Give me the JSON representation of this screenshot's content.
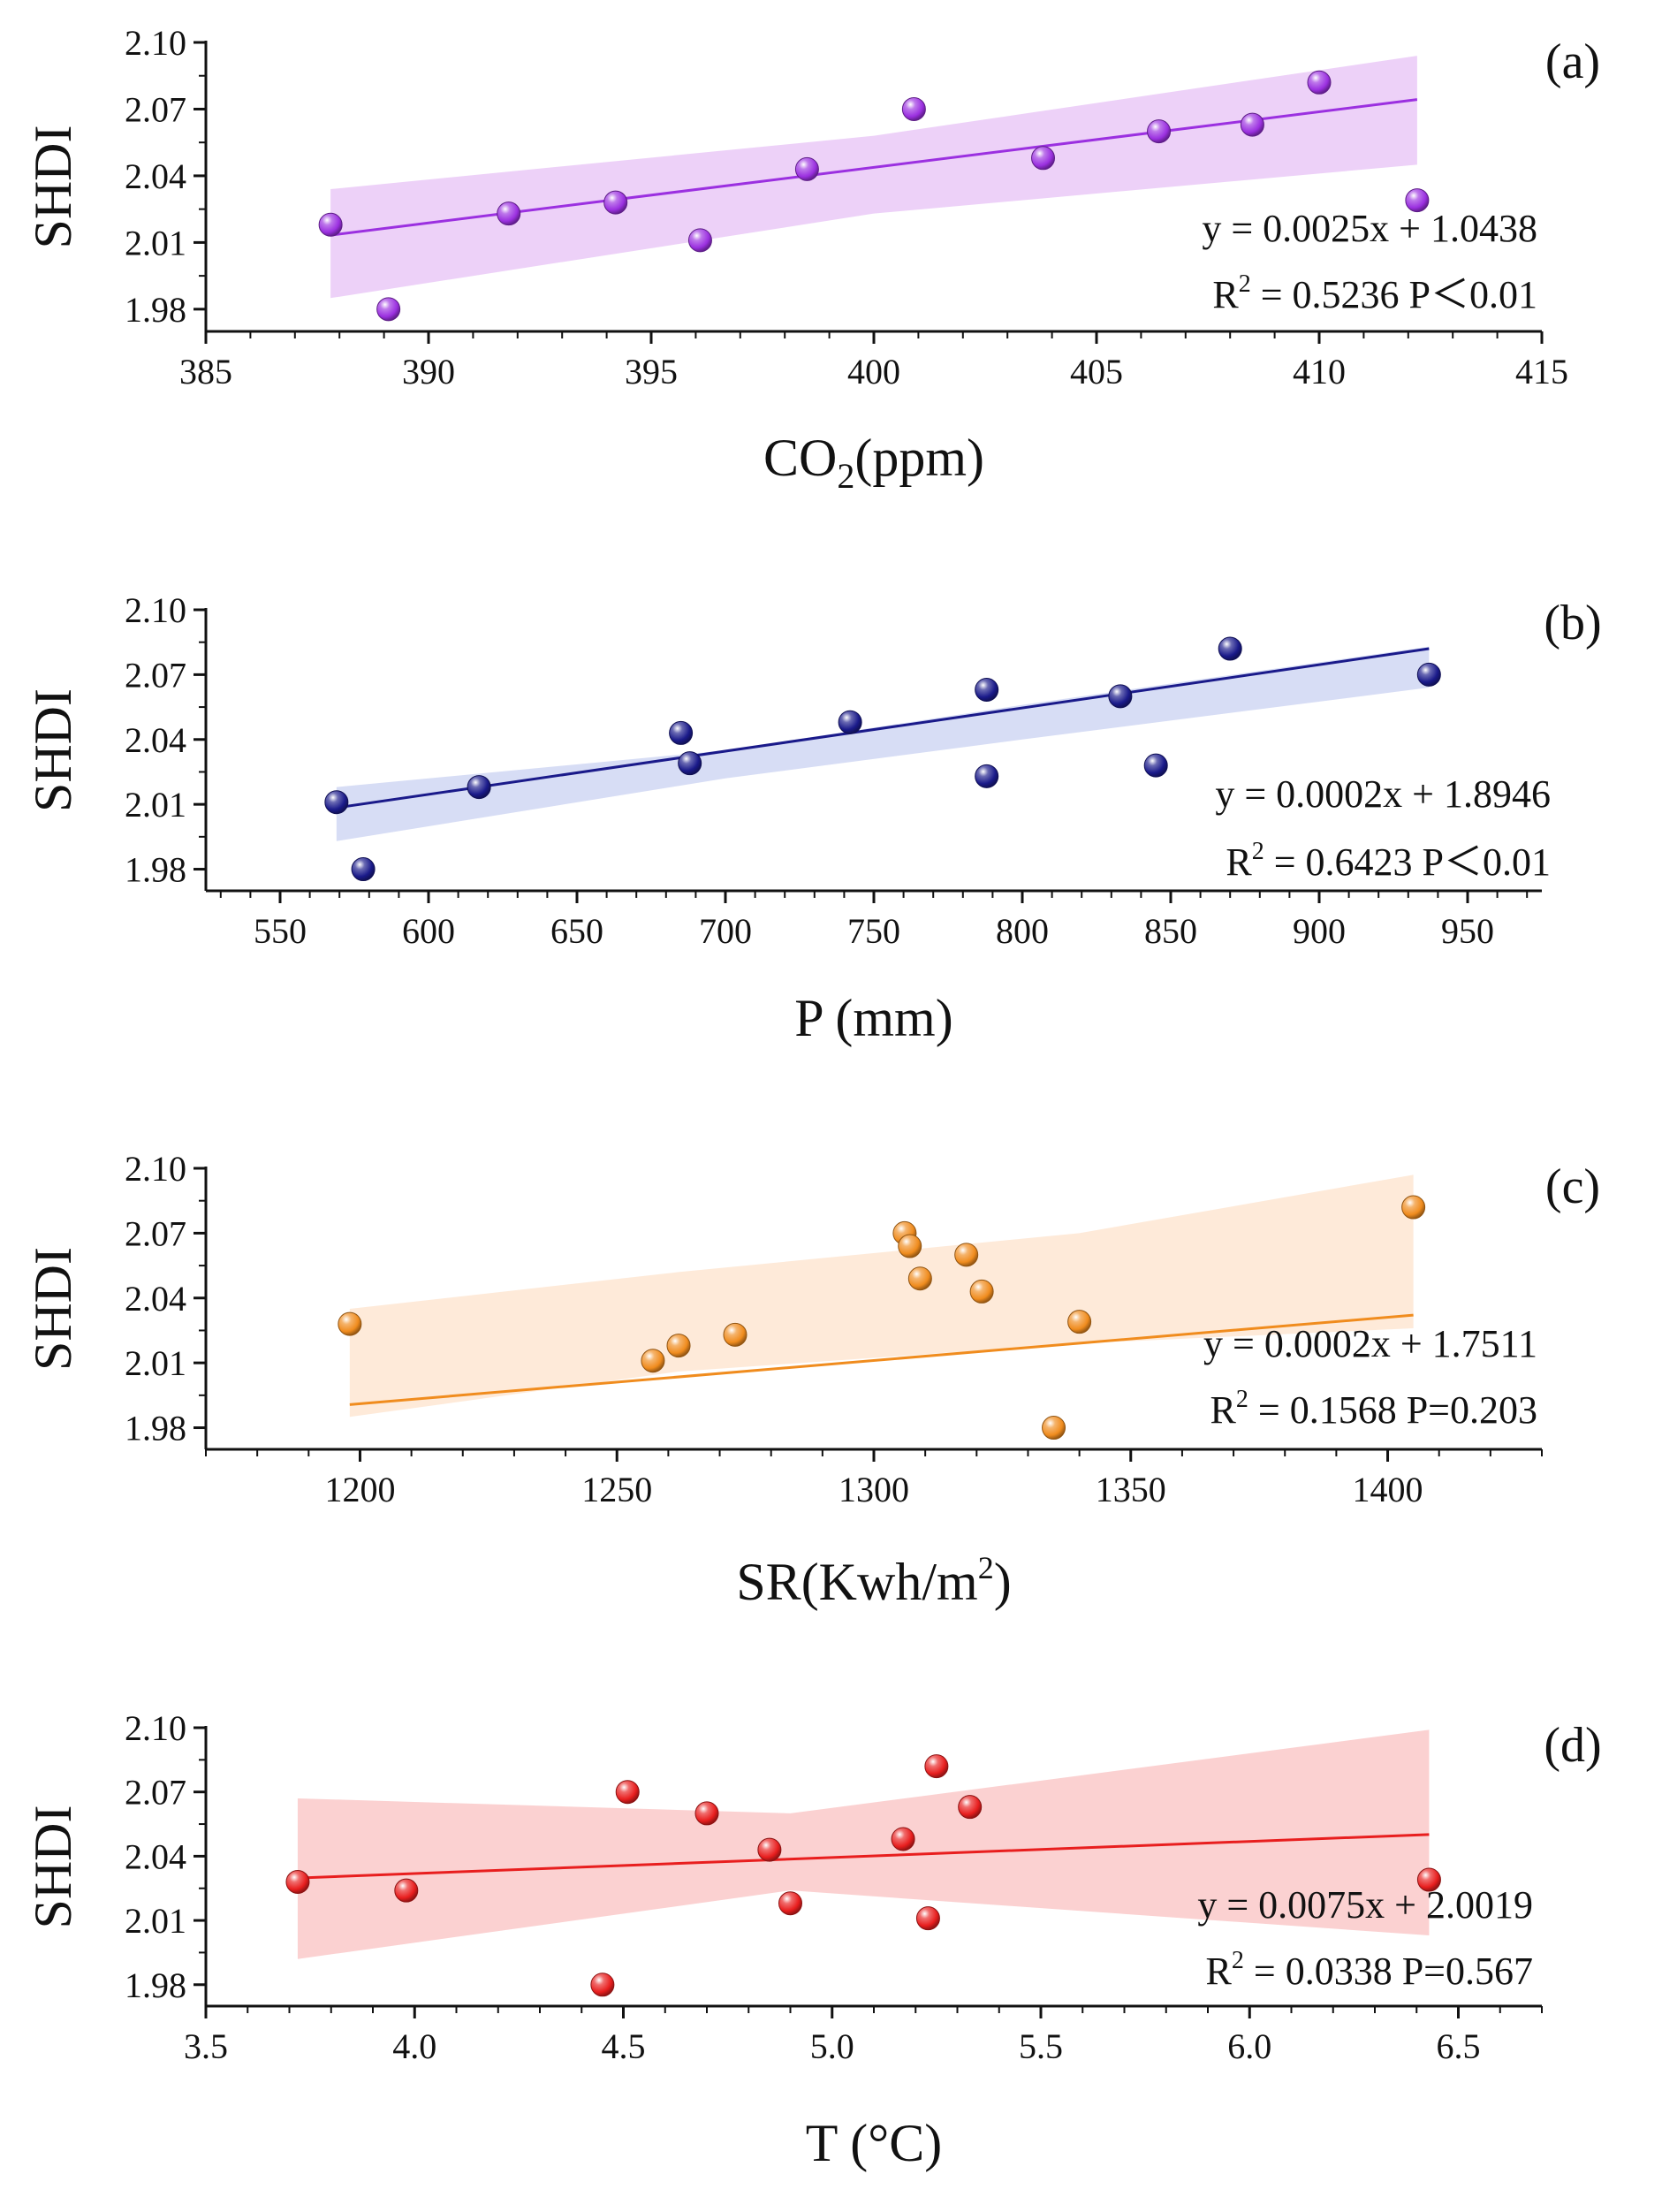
{
  "chart_data": [
    {
      "type": "scatter",
      "panel_label": "(a)",
      "ylabel": "SHDI",
      "xlabel": "CO",
      "xlabel_sub": "2",
      "xlabel_rest": "(ppm)",
      "xlim": [
        385,
        415
      ],
      "ylim": [
        1.97,
        2.1
      ],
      "xticks": [
        385,
        390,
        395,
        400,
        405,
        410,
        415
      ],
      "xtick_labels": [
        "385",
        "390",
        "395",
        "400",
        "405",
        "410",
        "415"
      ],
      "yticks": [
        1.98,
        2.01,
        2.04,
        2.07,
        2.1
      ],
      "ytick_labels": [
        "1.98",
        "2.01",
        "2.04",
        "2.07",
        "2.10"
      ],
      "color": "#9b30e0",
      "band_color": "#e7c2f5",
      "points": [
        [
          387.8,
          2.018
        ],
        [
          389.1,
          1.98
        ],
        [
          391.8,
          2.023
        ],
        [
          394.2,
          2.028
        ],
        [
          396.1,
          2.011
        ],
        [
          398.5,
          2.043
        ],
        [
          400.9,
          2.07
        ],
        [
          403.8,
          2.048
        ],
        [
          406.4,
          2.06
        ],
        [
          408.5,
          2.063
        ],
        [
          410.0,
          2.082
        ],
        [
          412.2,
          2.029
        ]
      ],
      "fit": {
        "slope": 0.0025,
        "intercept": 1.0438,
        "x_range": [
          387.8,
          412.2
        ]
      },
      "band": {
        "upper": [
          [
            387.8,
            2.034
          ],
          [
            400.0,
            2.058
          ],
          [
            412.2,
            2.094
          ]
        ],
        "lower": [
          [
            387.8,
            1.985
          ],
          [
            400.0,
            2.023
          ],
          [
            412.2,
            2.045
          ]
        ]
      },
      "equation": "y = 0.0025x + 1.0438",
      "r2_prefix": "R",
      "r2_sup": "2",
      "r2_text": " = 0.5236 P＜0.01"
    },
    {
      "type": "scatter",
      "panel_label": "(b)",
      "ylabel": "SHDI",
      "xlabel": "P (mm)",
      "xlim": [
        525,
        975
      ],
      "ylim": [
        1.97,
        2.1
      ],
      "xticks": [
        550,
        600,
        650,
        700,
        750,
        800,
        850,
        900,
        950
      ],
      "xtick_labels": [
        "550",
        "600",
        "650",
        "700",
        "750",
        "800",
        "850",
        "900",
        "950"
      ],
      "yticks": [
        1.98,
        2.01,
        2.04,
        2.07,
        2.1
      ],
      "ytick_labels": [
        "1.98",
        "2.01",
        "2.04",
        "2.07",
        "2.10"
      ],
      "color": "#1a1a8a",
      "band_color": "#c9d2f2",
      "points": [
        [
          569,
          2.011
        ],
        [
          578,
          1.98
        ],
        [
          617,
          2.018
        ],
        [
          685,
          2.043
        ],
        [
          688,
          2.029
        ],
        [
          742,
          2.048
        ],
        [
          788,
          2.063
        ],
        [
          788,
          2.023
        ],
        [
          833,
          2.06
        ],
        [
          845,
          2.028
        ],
        [
          870,
          2.082
        ],
        [
          937,
          2.07
        ]
      ],
      "fit": {
        "slope": 0.0002,
        "intercept": 1.8946,
        "x_range": [
          569,
          937
        ]
      },
      "band": {
        "upper": [
          [
            569,
            2.018
          ],
          [
            700,
            2.035
          ],
          [
            800,
            2.056
          ],
          [
            937,
            2.083
          ]
        ],
        "lower": [
          [
            569,
            1.993
          ],
          [
            700,
            2.022
          ],
          [
            800,
            2.04
          ],
          [
            937,
            2.064
          ]
        ]
      },
      "equation": "y = 0.0002x + 1.8946",
      "r2_prefix": "R",
      "r2_sup": "2",
      "r2_text": " = 0.6423 P＜0.01"
    },
    {
      "type": "scatter",
      "panel_label": "(c)",
      "ylabel": "SHDI",
      "xlabel": "SR(Kwh/m",
      "xlabel_sup": "2",
      "xlabel_rest": ")",
      "xlim": [
        1170,
        1430
      ],
      "ylim": [
        1.97,
        2.1
      ],
      "xticks": [
        1200,
        1250,
        1300,
        1350,
        1400
      ],
      "xtick_labels": [
        "1200",
        "1250",
        "1300",
        "1350",
        "1400"
      ],
      "yticks": [
        1.98,
        2.01,
        2.04,
        2.07,
        2.1
      ],
      "ytick_labels": [
        "1.98",
        "2.01",
        "2.04",
        "2.07",
        "2.10"
      ],
      "color": "#f08c1e",
      "band_color": "#fde3cc",
      "points": [
        [
          1198,
          2.028
        ],
        [
          1257,
          2.011
        ],
        [
          1262,
          2.018
        ],
        [
          1273,
          2.023
        ],
        [
          1306,
          2.07
        ],
        [
          1307,
          2.064
        ],
        [
          1309,
          2.049
        ],
        [
          1318,
          2.06
        ],
        [
          1321,
          2.043
        ],
        [
          1335,
          1.98
        ],
        [
          1340,
          2.029
        ],
        [
          1405,
          2.082
        ]
      ],
      "fit": {
        "slope": 0.0002,
        "intercept": 1.7511,
        "x_range": [
          1198,
          1405
        ]
      },
      "band": {
        "upper": [
          [
            1198,
            2.035
          ],
          [
            1262,
            2.052
          ],
          [
            1340,
            2.07
          ],
          [
            1405,
            2.097
          ]
        ],
        "lower": [
          [
            1198,
            1.985
          ],
          [
            1262,
            2.006
          ],
          [
            1340,
            2.019
          ],
          [
            1405,
            2.026
          ]
        ]
      },
      "equation": "y = 0.0002x + 1.7511",
      "r2_prefix": "R",
      "r2_sup": "2",
      "r2_text": " = 0.1568 P=0.203"
    },
    {
      "type": "scatter",
      "panel_label": "(d)",
      "ylabel": "SHDI",
      "xlabel": "T (°C)",
      "xlim": [
        3.5,
        6.7
      ],
      "ylim": [
        1.97,
        2.1
      ],
      "xticks": [
        3.5,
        4.0,
        4.5,
        5.0,
        5.5,
        6.0,
        6.5
      ],
      "xtick_labels": [
        "3.5",
        "4.0",
        "4.5",
        "5.0",
        "5.5",
        "6.0",
        "6.5"
      ],
      "yticks": [
        1.98,
        2.01,
        2.04,
        2.07,
        2.1
      ],
      "ytick_labels": [
        "1.98",
        "2.01",
        "2.04",
        "2.07",
        "2.10"
      ],
      "color": "#e81e1e",
      "band_color": "#fac2c2",
      "points": [
        [
          3.72,
          2.028
        ],
        [
          3.98,
          2.024
        ],
        [
          4.45,
          1.98
        ],
        [
          4.51,
          2.07
        ],
        [
          4.7,
          2.06
        ],
        [
          4.85,
          2.043
        ],
        [
          4.9,
          2.018
        ],
        [
          5.17,
          2.048
        ],
        [
          5.23,
          2.011
        ],
        [
          5.25,
          2.082
        ],
        [
          5.33,
          2.063
        ],
        [
          6.43,
          2.029
        ]
      ],
      "fit": {
        "slope": 0.0075,
        "intercept": 2.0019,
        "x_range": [
          3.72,
          6.43
        ]
      },
      "band": {
        "upper": [
          [
            3.72,
            2.067
          ],
          [
            4.9,
            2.06
          ],
          [
            6.43,
            2.099
          ]
        ],
        "lower": [
          [
            3.72,
            1.992
          ],
          [
            4.9,
            2.024
          ],
          [
            6.43,
            2.003
          ]
        ]
      },
      "equation": "y = 0.0075x + 2.0019",
      "r2_prefix": "R",
      "r2_sup": "2",
      "r2_text": " = 0.0338  P=0.567"
    }
  ]
}
